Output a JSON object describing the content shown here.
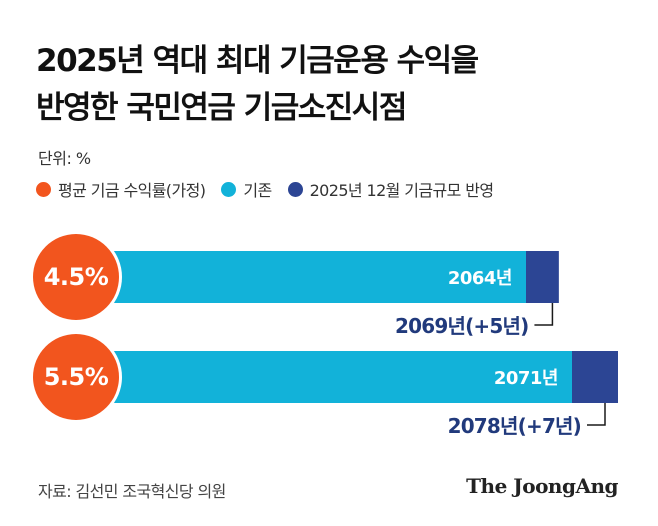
{
  "title_lines": [
    "2025년 역대 최대 기금운용 수익을",
    "반영한 국민연금 기금소진시점"
  ],
  "unit_label": "단위: %",
  "legend": [
    {
      "label": "평균 기금 수익률(가정)",
      "color": "#f2551e"
    },
    {
      "label": "기존",
      "color": "#12b2d9"
    },
    {
      "label": "2025년 12월 기금규모 반영",
      "color": "#2c4594"
    }
  ],
  "source": "자료: 김선민 조국혁신당 의원",
  "logo": "The JoongAng",
  "chart_data": {
    "type": "bar",
    "orientation": "horizontal",
    "stacked": true,
    "categories": [
      "4.5%",
      "5.5%"
    ],
    "series": [
      {
        "name": "기존",
        "values": [
          2064,
          2071
        ],
        "labels": [
          "2064년",
          "2071년"
        ],
        "color": "#12b2d9"
      },
      {
        "name": "2025년 12월 기금규모 반영",
        "values": [
          2069,
          2078
        ],
        "labels": [
          "2069년(+5년)",
          "2078년(+7년)"
        ],
        "color": "#2c4594"
      }
    ],
    "unit": "%"
  }
}
